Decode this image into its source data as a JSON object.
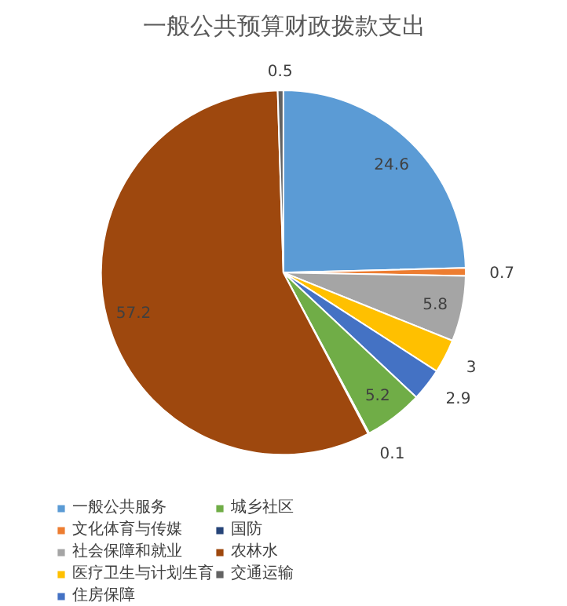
{
  "chart_data": {
    "type": "pie",
    "title": "一般公共预算财政拨款支出",
    "categories": [
      "一般公共服务",
      "文化体育与传媒",
      "社会保障和就业",
      "医疗卫生与计划生育",
      "住房保障",
      "城乡社区",
      "国防",
      "农林水",
      "交通运输"
    ],
    "values": [
      24.6,
      0.7,
      5.8,
      3,
      2.9,
      5.2,
      0.1,
      57.2,
      0.5
    ],
    "colors": [
      "#5b9bd5",
      "#ed7d31",
      "#a5a5a5",
      "#ffc000",
      "#4472c4",
      "#70ad47",
      "#264478",
      "#9e480e",
      "#636363"
    ],
    "data_labels": true,
    "legend": "bottom"
  }
}
